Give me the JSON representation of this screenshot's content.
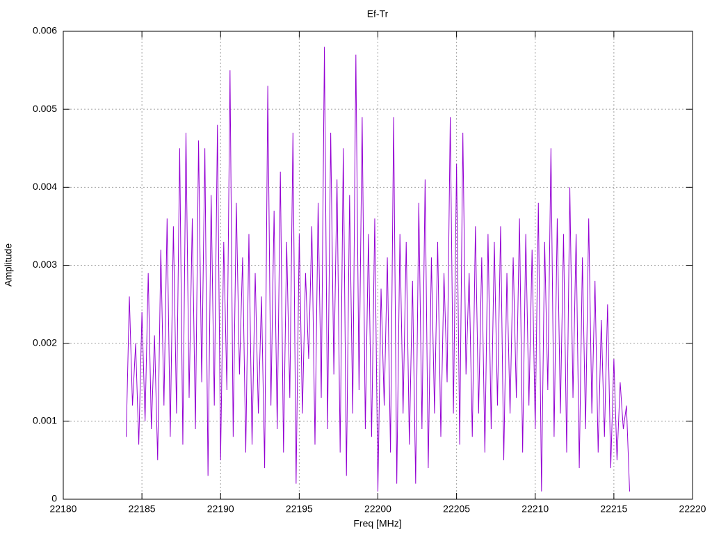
{
  "chart_data": {
    "type": "line",
    "title": "Ef-Tr",
    "x_label": "Freq [MHz]",
    "y_label": "Amplitude",
    "xlim": [
      22180,
      22220
    ],
    "xticks": [
      22180,
      22185,
      22190,
      22195,
      22200,
      22205,
      22210,
      22215,
      22220
    ],
    "ylim": [
      0,
      0.006
    ],
    "yticks": [
      0,
      0.001,
      0.002,
      0.003,
      0.004,
      0.005,
      0.006
    ],
    "grid": true,
    "x": [
      22184.0,
      22184.2,
      22184.4,
      22184.6,
      22184.8,
      22185.0,
      22185.2,
      22185.4,
      22185.6,
      22185.8,
      22186.0,
      22186.2,
      22186.4,
      22186.6,
      22186.8,
      22187.0,
      22187.2,
      22187.4,
      22187.6,
      22187.8,
      22188.0,
      22188.2,
      22188.4,
      22188.6,
      22188.8,
      22189.0,
      22189.2,
      22189.4,
      22189.6,
      22189.8,
      22190.0,
      22190.2,
      22190.4,
      22190.6,
      22190.8,
      22191.0,
      22191.2,
      22191.4,
      22191.6,
      22191.8,
      22192.0,
      22192.2,
      22192.4,
      22192.6,
      22192.8,
      22193.0,
      22193.2,
      22193.4,
      22193.6,
      22193.8,
      22194.0,
      22194.2,
      22194.4,
      22194.6,
      22194.8,
      22195.0,
      22195.2,
      22195.4,
      22195.6,
      22195.8,
      22196.0,
      22196.2,
      22196.4,
      22196.6,
      22196.8,
      22197.0,
      22197.2,
      22197.4,
      22197.6,
      22197.8,
      22198.0,
      22198.2,
      22198.4,
      22198.6,
      22198.8,
      22199.0,
      22199.2,
      22199.4,
      22199.6,
      22199.8,
      22200.0,
      22200.2,
      22200.4,
      22200.6,
      22200.8,
      22201.0,
      22201.2,
      22201.4,
      22201.6,
      22201.8,
      22202.0,
      22202.2,
      22202.4,
      22202.6,
      22202.8,
      22203.0,
      22203.2,
      22203.4,
      22203.6,
      22203.8,
      22204.0,
      22204.2,
      22204.4,
      22204.6,
      22204.8,
      22205.0,
      22205.2,
      22205.4,
      22205.6,
      22205.8,
      22206.0,
      22206.2,
      22206.4,
      22206.6,
      22206.8,
      22207.0,
      22207.2,
      22207.4,
      22207.6,
      22207.8,
      22208.0,
      22208.2,
      22208.4,
      22208.6,
      22208.8,
      22209.0,
      22209.2,
      22209.4,
      22209.6,
      22209.8,
      22210.0,
      22210.2,
      22210.4,
      22210.6,
      22210.8,
      22211.0,
      22211.2,
      22211.4,
      22211.6,
      22211.8,
      22212.0,
      22212.2,
      22212.4,
      22212.6,
      22212.8,
      22213.0,
      22213.2,
      22213.4,
      22213.6,
      22213.8,
      22214.0,
      22214.2,
      22214.4,
      22214.6,
      22214.8,
      22215.0,
      22215.2,
      22215.4,
      22215.6,
      22215.8,
      22216.0
    ],
    "series": [
      {
        "color": "#9400d3",
        "values": [
          0.0008,
          0.0026,
          0.0012,
          0.002,
          0.0007,
          0.0024,
          0.001,
          0.0029,
          0.0009,
          0.0021,
          0.0005,
          0.0032,
          0.0012,
          0.0036,
          0.0008,
          0.0035,
          0.0011,
          0.0045,
          0.0007,
          0.0047,
          0.0013,
          0.0036,
          0.0009,
          0.0046,
          0.0015,
          0.0045,
          0.0003,
          0.0039,
          0.0012,
          0.0048,
          0.0005,
          0.0033,
          0.0014,
          0.0055,
          0.0008,
          0.0038,
          0.0016,
          0.0031,
          0.0006,
          0.0034,
          0.0007,
          0.0029,
          0.0011,
          0.0026,
          0.0004,
          0.0053,
          0.0012,
          0.0037,
          0.0009,
          0.0042,
          0.0006,
          0.0033,
          0.0013,
          0.0047,
          0.0002,
          0.0034,
          0.0011,
          0.0029,
          0.0018,
          0.0035,
          0.0007,
          0.0038,
          0.0013,
          0.0058,
          0.0009,
          0.0047,
          0.0016,
          0.0041,
          0.0006,
          0.0045,
          0.0003,
          0.0039,
          0.0011,
          0.0057,
          0.0014,
          0.0049,
          0.0009,
          0.0034,
          0.0008,
          0.0036,
          0.0001,
          0.0027,
          0.0012,
          0.0031,
          0.0006,
          0.0049,
          0.0002,
          0.0034,
          0.0011,
          0.0033,
          0.0007,
          0.0028,
          0.0002,
          0.0038,
          0.0009,
          0.0041,
          0.0004,
          0.0031,
          0.0011,
          0.0033,
          0.0008,
          0.0029,
          0.0015,
          0.0049,
          0.0011,
          0.0043,
          0.0007,
          0.0047,
          0.0016,
          0.0029,
          0.0008,
          0.0035,
          0.0011,
          0.0031,
          0.0006,
          0.0034,
          0.0009,
          0.0033,
          0.0012,
          0.0035,
          0.0005,
          0.0029,
          0.0011,
          0.0031,
          0.0013,
          0.0036,
          0.0006,
          0.0034,
          0.0012,
          0.0032,
          0.0009,
          0.0038,
          0.0001,
          0.0033,
          0.0014,
          0.0045,
          0.0008,
          0.0036,
          0.0011,
          0.0034,
          0.0006,
          0.004,
          0.0013,
          0.0034,
          0.0004,
          0.0031,
          0.0009,
          0.0036,
          0.0011,
          0.0028,
          0.0006,
          0.0023,
          0.0008,
          0.0025,
          0.0004,
          0.0018,
          0.0005,
          0.0015,
          0.0009,
          0.0012,
          0.0001
        ]
      }
    ]
  }
}
